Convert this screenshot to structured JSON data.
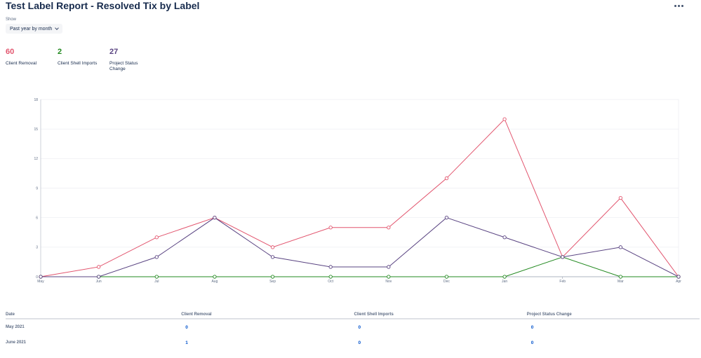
{
  "header": {
    "title": "Test Label Report - Resolved Tix by Label"
  },
  "filter": {
    "label": "Show",
    "value": "Past year by month"
  },
  "summary": [
    {
      "value": "60",
      "label": "Client Removal",
      "color": "#e2556e"
    },
    {
      "value": "2",
      "label": "Client Shell Imports",
      "color": "#22891f"
    },
    {
      "value": "27",
      "label": "Project Status Change",
      "color": "#5a4482"
    }
  ],
  "chart_data": {
    "type": "line",
    "x": [
      "May",
      "Jun",
      "Jul",
      "Aug",
      "Sep",
      "Oct",
      "Nov",
      "Dec",
      "Jan",
      "Feb",
      "Mar",
      "Apr"
    ],
    "ylim": [
      0,
      18
    ],
    "yticks": [
      0,
      3,
      6,
      9,
      12,
      15,
      18
    ],
    "grid": true,
    "series": [
      {
        "name": "Client Removal",
        "color": "#e2556e",
        "values": [
          0,
          1,
          4,
          6,
          3,
          5,
          5,
          10,
          16,
          2,
          8,
          0
        ]
      },
      {
        "name": "Client Shell Imports",
        "color": "#22891f",
        "values": [
          0,
          0,
          0,
          0,
          0,
          0,
          0,
          0,
          0,
          2,
          0,
          0
        ]
      },
      {
        "name": "Project Status Change",
        "color": "#5a4482",
        "values": [
          0,
          0,
          2,
          6,
          2,
          1,
          1,
          6,
          4,
          2,
          3,
          0
        ]
      }
    ]
  },
  "table": {
    "headers": [
      "Date",
      "Client Removal",
      "Client Shell Imports",
      "Project Status Change"
    ],
    "rows": [
      {
        "date": "May 2021",
        "values": [
          "0",
          "0",
          "0"
        ]
      },
      {
        "date": "June 2021",
        "values": [
          "1",
          "0",
          "0"
        ]
      }
    ]
  }
}
